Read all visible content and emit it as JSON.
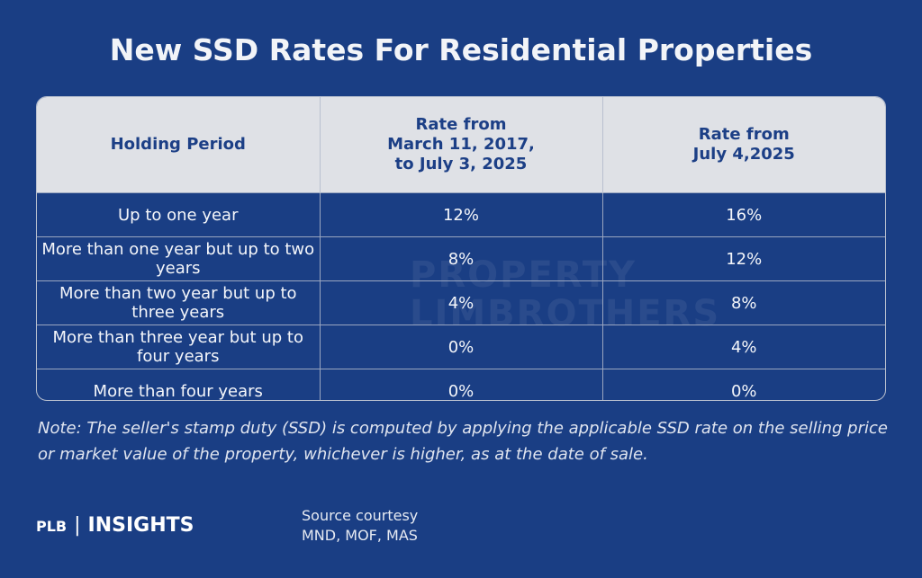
{
  "title": "New SSD Rates For Residential Properties",
  "table": {
    "headers": [
      "Holding Period",
      "Rate from\nMarch 11, 2017,\nto July 3, 2025",
      "Rate from\nJuly 4,2025"
    ],
    "rows": [
      [
        "Up to one year",
        "12%",
        "16%"
      ],
      [
        "More than one year but up to two years",
        "8%",
        "12%"
      ],
      [
        "More than two year but up to three years",
        "4%",
        "8%"
      ],
      [
        "More than three year but up to four years",
        "0%",
        "4%"
      ],
      [
        "More than four years",
        "0%",
        "0%"
      ]
    ]
  },
  "watermark": [
    "PROPERTY",
    "LIMBROTHERS"
  ],
  "note": "Note: The seller's stamp duty (SSD) is computed by applying the applicable SSD rate on the selling price or market value of the property, whichever is higher, as at the date of sale.",
  "footer": {
    "brand": "PLB",
    "product": "INSIGHTS",
    "source": [
      "Source courtesy",
      "MND, MOF, MAS"
    ]
  }
}
